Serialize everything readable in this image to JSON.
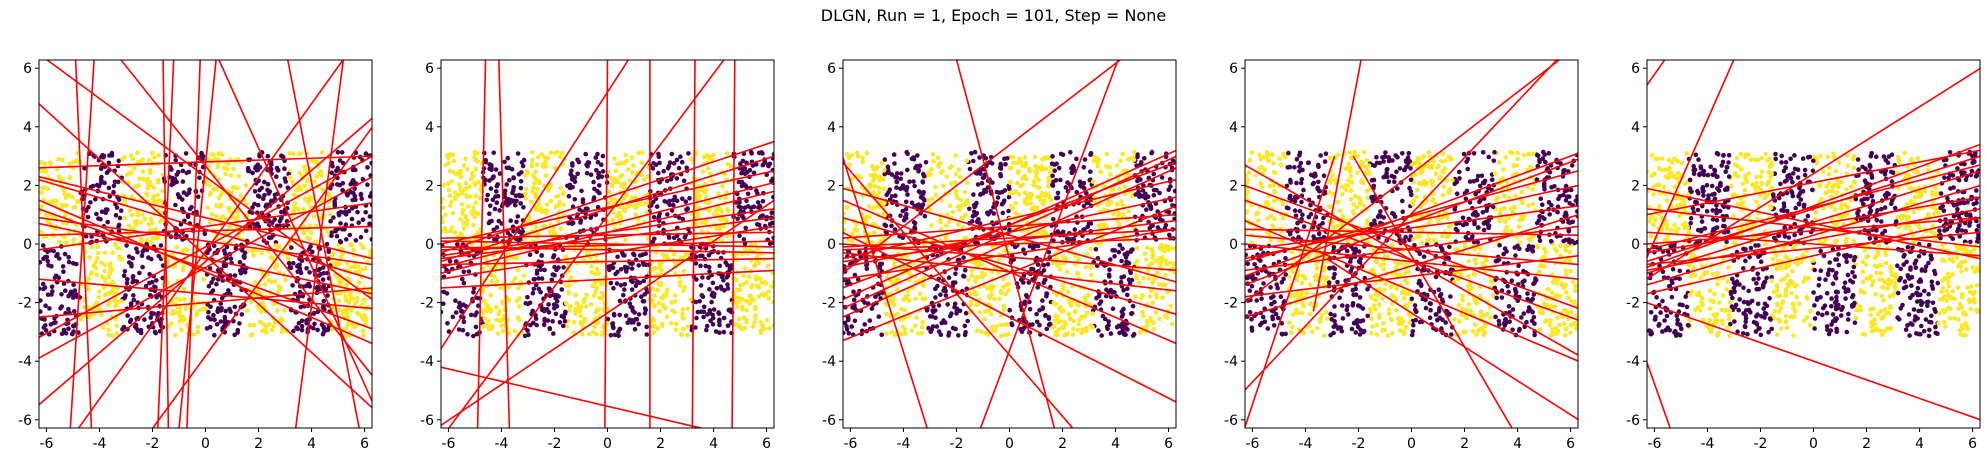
{
  "title": "DLGN, Run = 1, Epoch = 101, Step = None",
  "colors": {
    "line": "#ff0000",
    "class_a": "#fde725",
    "class_b": "#440154",
    "axes": "#000000"
  },
  "chart_data": [
    {
      "type": "scatter",
      "xlim": [
        -6.28,
        6.28
      ],
      "ylim": [
        -6.28,
        6.28
      ],
      "xticks": [
        -6,
        -4,
        -2,
        0,
        2,
        4,
        6
      ],
      "yticks": [
        -6,
        -4,
        -2,
        0,
        2,
        4,
        6
      ],
      "points": {
        "x_range": [
          -6.28,
          6.28
        ],
        "y_range": [
          -3.14,
          3.14
        ],
        "stripe_width": 1.57
      },
      "lines": [
        [
          [
            -6.3,
            4.8
          ],
          [
            6.3,
            -5.6
          ]
        ],
        [
          [
            -6.3,
            2.2
          ],
          [
            6.3,
            -1.2
          ]
        ],
        [
          [
            -6.3,
            -3.2
          ],
          [
            6.3,
            3.0
          ]
        ],
        [
          [
            -6.3,
            0.3
          ],
          [
            6.3,
            0.6
          ]
        ],
        [
          [
            -5.1,
            -6.3
          ],
          [
            -4.2,
            6.3
          ]
        ],
        [
          [
            -4.3,
            -6.3
          ],
          [
            -4.9,
            6.3
          ]
        ],
        [
          [
            -6.3,
            -5.5
          ],
          [
            6.3,
            4.3
          ]
        ],
        [
          [
            -1.8,
            -6.3
          ],
          [
            -1.2,
            6.3
          ]
        ],
        [
          [
            -1.4,
            -6.3
          ],
          [
            -1.6,
            6.3
          ]
        ],
        [
          [
            -6.3,
            2.6
          ],
          [
            6.3,
            3.0
          ]
        ],
        [
          [
            -6.3,
            1.2
          ],
          [
            6.3,
            -2.9
          ]
        ],
        [
          [
            -6.3,
            -2.5
          ],
          [
            6.3,
            -1.5
          ]
        ],
        [
          [
            -1.0,
            -6.3
          ],
          [
            0.4,
            6.3
          ]
        ],
        [
          [
            -6.3,
            1.5
          ],
          [
            6.3,
            -3.4
          ]
        ],
        [
          [
            -3.2,
            6.3
          ],
          [
            6.3,
            -4.5
          ]
        ],
        [
          [
            -6.3,
            -0.2
          ],
          [
            6.3,
            1.4
          ]
        ],
        [
          [
            3.4,
            -6.3
          ],
          [
            5.2,
            6.3
          ]
        ],
        [
          [
            5.8,
            -6.3
          ],
          [
            3.1,
            6.3
          ]
        ],
        [
          [
            -6.0,
            6.3
          ],
          [
            6.3,
            -1.9
          ]
        ],
        [
          [
            -6.3,
            2.3
          ],
          [
            6.3,
            -0.5
          ]
        ],
        [
          [
            -6.3,
            -1.2
          ],
          [
            6.3,
            -2.2
          ]
        ],
        [
          [
            0.5,
            6.3
          ],
          [
            6.3,
            -5.4
          ]
        ],
        [
          [
            -2.0,
            -6.3
          ],
          [
            6.3,
            4.0
          ]
        ],
        [
          [
            -4.8,
            -6.3
          ],
          [
            5.2,
            6.3
          ]
        ],
        [
          [
            -6.3,
            0.9
          ],
          [
            6.3,
            -0.7
          ]
        ],
        [
          [
            -6.3,
            -3.9
          ],
          [
            6.3,
            2.3
          ]
        ],
        [
          [
            -0.7,
            -6.3
          ],
          [
            -0.2,
            6.3
          ]
        ],
        [
          [
            -6.3,
            0.7
          ],
          [
            6.3,
            -1.7
          ]
        ]
      ]
    },
    {
      "type": "scatter",
      "xlim": [
        -6.28,
        6.28
      ],
      "ylim": [
        -6.28,
        6.28
      ],
      "xticks": [
        -6,
        -4,
        -2,
        0,
        2,
        4,
        6
      ],
      "yticks": [
        -6,
        -4,
        -2,
        0,
        2,
        4,
        6
      ],
      "points": {
        "x_range": [
          -6.28,
          6.28
        ],
        "y_range": [
          -3.14,
          3.14
        ],
        "stripe_width": 1.57
      },
      "lines": [
        [
          [
            -4.9,
            -6.3
          ],
          [
            -4.6,
            6.3
          ]
        ],
        [
          [
            -3.7,
            -6.3
          ],
          [
            -4.1,
            6.3
          ]
        ],
        [
          [
            1.6,
            -6.3
          ],
          [
            1.6,
            6.3
          ]
        ],
        [
          [
            3.2,
            -6.3
          ],
          [
            3.3,
            6.3
          ]
        ],
        [
          [
            4.7,
            -6.3
          ],
          [
            4.8,
            6.3
          ]
        ],
        [
          [
            -0.1,
            -6.3
          ],
          [
            0.0,
            6.3
          ]
        ],
        [
          [
            -6.3,
            -6.2
          ],
          [
            6.3,
            1.5
          ]
        ],
        [
          [
            -6.0,
            -6.3
          ],
          [
            4.4,
            6.3
          ]
        ],
        [
          [
            -6.3,
            -3.6
          ],
          [
            0.8,
            6.3
          ]
        ],
        [
          [
            -6.3,
            -4.2
          ],
          [
            3.6,
            -6.3
          ]
        ],
        [
          [
            -6.3,
            -0.3
          ],
          [
            6.3,
            3.5
          ]
        ],
        [
          [
            -6.3,
            0.2
          ],
          [
            6.3,
            0.4
          ]
        ],
        [
          [
            -6.3,
            -0.1
          ],
          [
            6.3,
            -0.3
          ]
        ],
        [
          [
            -6.3,
            -0.5
          ],
          [
            6.3,
            0.9
          ]
        ],
        [
          [
            -6.3,
            0.0
          ],
          [
            6.3,
            2.5
          ]
        ],
        [
          [
            -6.3,
            -0.6
          ],
          [
            6.3,
            3.0
          ]
        ],
        [
          [
            -6.3,
            -1.0
          ],
          [
            6.3,
            1.8
          ]
        ],
        [
          [
            -6.3,
            -0.2
          ],
          [
            6.3,
            0.1
          ]
        ],
        [
          [
            -6.3,
            -1.5
          ],
          [
            6.3,
            -0.9
          ]
        ],
        [
          [
            -6.3,
            -0.4
          ],
          [
            6.3,
            1.2
          ]
        ],
        [
          [
            -6.3,
            0.1
          ],
          [
            6.3,
            -0.1
          ]
        ],
        [
          [
            -6.3,
            -0.8
          ],
          [
            6.3,
            2.1
          ]
        ],
        [
          [
            -6.3,
            -1.2
          ],
          [
            6.3,
            0.6
          ]
        ],
        [
          [
            -6.3,
            -0.7
          ],
          [
            6.3,
            -0.5
          ]
        ]
      ]
    },
    {
      "type": "scatter",
      "xlim": [
        -6.28,
        6.28
      ],
      "ylim": [
        -6.28,
        6.28
      ],
      "xticks": [
        -6,
        -4,
        -2,
        0,
        2,
        4,
        6
      ],
      "yticks": [
        -6,
        -4,
        -2,
        0,
        2,
        4,
        6
      ],
      "points": {
        "x_range": [
          -6.28,
          6.28
        ],
        "y_range": [
          -3.14,
          3.14
        ],
        "stripe_width": 1.57
      },
      "lines": [
        [
          [
            -6.3,
            -1.0
          ],
          [
            4.2,
            6.3
          ]
        ],
        [
          [
            -2.0,
            6.3
          ],
          [
            1.7,
            -6.3
          ]
        ],
        [
          [
            -1.1,
            -6.3
          ],
          [
            4.1,
            6.3
          ]
        ],
        [
          [
            -6.3,
            3.0
          ],
          [
            -3.1,
            -6.3
          ]
        ],
        [
          [
            -6.3,
            2.8
          ],
          [
            2.4,
            -6.3
          ]
        ],
        [
          [
            -6.3,
            -2.2
          ],
          [
            6.3,
            3.0
          ]
        ],
        [
          [
            -6.3,
            -0.5
          ],
          [
            6.3,
            2.2
          ]
        ],
        [
          [
            -6.3,
            1.5
          ],
          [
            6.3,
            -3.4
          ]
        ],
        [
          [
            -6.3,
            0.4
          ],
          [
            6.3,
            -5.4
          ]
        ],
        [
          [
            -6.3,
            -1.2
          ],
          [
            6.3,
            0.5
          ]
        ],
        [
          [
            -6.3,
            -0.8
          ],
          [
            6.3,
            1.6
          ]
        ],
        [
          [
            -6.3,
            -0.2
          ],
          [
            6.3,
            0.2
          ]
        ],
        [
          [
            -6.3,
            0.0
          ],
          [
            6.3,
            -0.9
          ]
        ],
        [
          [
            -6.3,
            -1.5
          ],
          [
            6.3,
            2.8
          ]
        ],
        [
          [
            -6.3,
            -3.3
          ],
          [
            6.3,
            1.3
          ]
        ],
        [
          [
            -6.3,
            0.9
          ],
          [
            6.3,
            -2.4
          ]
        ],
        [
          [
            -6.3,
            -0.3
          ],
          [
            6.3,
            -1.6
          ]
        ],
        [
          [
            -6.3,
            -0.6
          ],
          [
            6.3,
            0.8
          ]
        ],
        [
          [
            -6.3,
            0.2
          ],
          [
            6.3,
            1.0
          ]
        ],
        [
          [
            -6.3,
            -1.9
          ],
          [
            6.3,
            3.2
          ]
        ],
        [
          [
            -6.3,
            1.9
          ],
          [
            6.3,
            -1.3
          ]
        ],
        [
          [
            -6.3,
            -2.5
          ],
          [
            6.3,
            2.6
          ]
        ],
        [
          [
            -6.3,
            -0.1
          ],
          [
            6.3,
            0.5
          ]
        ]
      ]
    },
    {
      "type": "scatter",
      "xlim": [
        -6.28,
        6.28
      ],
      "ylim": [
        -6.28,
        6.28
      ],
      "xticks": [
        -6,
        -4,
        -2,
        0,
        2,
        4,
        6
      ],
      "yticks": [
        -6,
        -4,
        -2,
        0,
        2,
        4,
        6
      ],
      "points": {
        "x_range": [
          -6.28,
          6.28
        ],
        "y_range": [
          -3.14,
          3.14
        ],
        "stripe_width": 1.57
      },
      "lines": [
        [
          [
            -6.3,
            -5.0
          ],
          [
            5.5,
            6.3
          ]
        ],
        [
          [
            -3.7,
            -2.3
          ],
          [
            -1.9,
            6.3
          ]
        ],
        [
          [
            -6.3,
            -2.0
          ],
          [
            5.6,
            6.3
          ]
        ],
        [
          [
            -6.3,
            -6.3
          ],
          [
            -2.9,
            3.0
          ]
        ],
        [
          [
            -6.3,
            1.5
          ],
          [
            6.3,
            -2.6
          ]
        ],
        [
          [
            -6.3,
            2.7
          ],
          [
            6.3,
            -3.8
          ]
        ],
        [
          [
            -6.3,
            -1.4
          ],
          [
            6.3,
            2.9
          ]
        ],
        [
          [
            -6.3,
            -0.5
          ],
          [
            6.3,
            2.0
          ]
        ],
        [
          [
            -6.3,
            0.3
          ],
          [
            6.3,
            -0.7
          ]
        ],
        [
          [
            -6.3,
            0.8
          ],
          [
            6.3,
            -4.0
          ]
        ],
        [
          [
            -6.3,
            -2.5
          ],
          [
            6.3,
            1.0
          ]
        ],
        [
          [
            -6.3,
            -0.9
          ],
          [
            6.3,
            0.6
          ]
        ],
        [
          [
            -6.3,
            -0.2
          ],
          [
            6.3,
            1.3
          ]
        ],
        [
          [
            -6.3,
            0.0
          ],
          [
            6.3,
            -1.2
          ]
        ],
        [
          [
            -6.3,
            -1.1
          ],
          [
            6.3,
            3.1
          ]
        ],
        [
          [
            -6.3,
            -1.8
          ],
          [
            6.3,
            -0.4
          ]
        ],
        [
          [
            -6.3,
            2.0
          ],
          [
            6.3,
            -2.2
          ]
        ],
        [
          [
            -2.2,
            3.0
          ],
          [
            3.8,
            -6.3
          ]
        ],
        [
          [
            -3.2,
            -0.5
          ],
          [
            6.3,
            -6.0
          ]
        ],
        [
          [
            -6.3,
            0.5
          ],
          [
            6.3,
            0.3
          ]
        ],
        [
          [
            -6.3,
            -0.6
          ],
          [
            6.3,
            2.5
          ]
        ]
      ]
    },
    {
      "type": "scatter",
      "xlim": [
        -6.28,
        6.28
      ],
      "ylim": [
        -6.28,
        6.28
      ],
      "xticks": [
        -6,
        -4,
        -2,
        0,
        2,
        4,
        6
      ],
      "yticks": [
        -6,
        -4,
        -2,
        0,
        2,
        4,
        6
      ],
      "points": {
        "x_range": [
          -6.28,
          6.28
        ],
        "y_range": [
          -3.14,
          3.14
        ],
        "stripe_width": 1.57
      },
      "lines": [
        [
          [
            -6.3,
            5.4
          ],
          [
            -5.6,
            6.3
          ]
        ],
        [
          [
            -6.3,
            -4.0
          ],
          [
            -5.4,
            -6.3
          ]
        ],
        [
          [
            -6.3,
            -0.5
          ],
          [
            -3.0,
            6.3
          ]
        ],
        [
          [
            -6.3,
            -1.2
          ],
          [
            6.3,
            6.0
          ]
        ],
        [
          [
            -6.3,
            -0.8
          ],
          [
            6.3,
            3.4
          ]
        ],
        [
          [
            -6.3,
            -1.0
          ],
          [
            6.3,
            2.5
          ]
        ],
        [
          [
            -6.3,
            -0.6
          ],
          [
            6.3,
            3.0
          ]
        ],
        [
          [
            -6.3,
            -0.3
          ],
          [
            6.3,
            1.6
          ]
        ],
        [
          [
            -6.3,
            0.0
          ],
          [
            6.3,
            0.9
          ]
        ],
        [
          [
            -6.3,
            1.9
          ],
          [
            6.3,
            -0.5
          ]
        ],
        [
          [
            -6.3,
            1.2
          ],
          [
            6.3,
            -0.1
          ]
        ],
        [
          [
            -6.3,
            -1.4
          ],
          [
            6.3,
            2.0
          ]
        ],
        [
          [
            -6.3,
            -2.0
          ],
          [
            6.3,
            -6.0
          ]
        ],
        [
          [
            -6.3,
            -0.9
          ],
          [
            6.3,
            1.2
          ]
        ],
        [
          [
            -6.3,
            0.4
          ],
          [
            6.3,
            -0.4
          ]
        ],
        [
          [
            -6.3,
            -0.2
          ],
          [
            6.3,
            2.7
          ]
        ],
        [
          [
            -6.3,
            -0.7
          ],
          [
            6.3,
            0.4
          ]
        ],
        [
          [
            -6.3,
            1.0
          ],
          [
            6.3,
            3.2
          ]
        ],
        [
          [
            -6.3,
            -1.7
          ],
          [
            6.3,
            0.9
          ]
        ]
      ]
    }
  ]
}
